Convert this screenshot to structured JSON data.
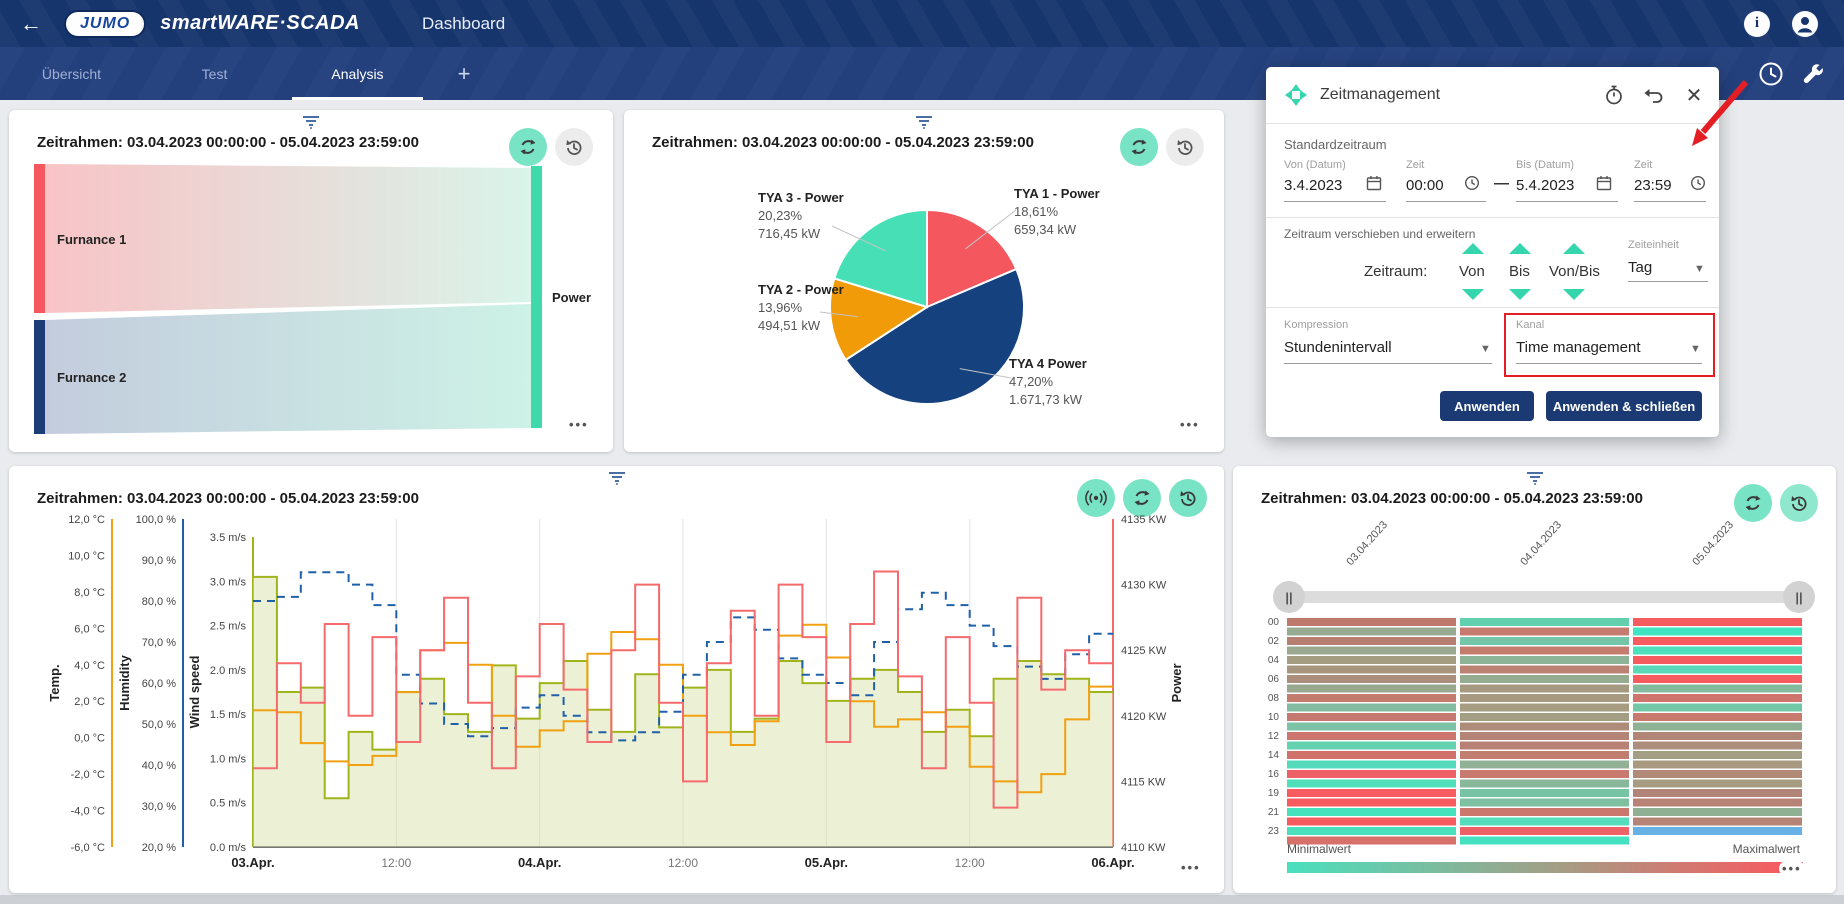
{
  "header": {
    "logo": "JUMO",
    "brand": "smartWARE·SCADA",
    "page": "Dashboard"
  },
  "tabs": {
    "items": [
      {
        "label": "Übersicht",
        "active": false
      },
      {
        "label": "Test",
        "active": false
      },
      {
        "label": "Analysis",
        "active": true
      }
    ],
    "add": "+"
  },
  "timeframe_title": "Zeitrahmen: 03.04.2023 00:00:00 - 05.04.2023 23:59:00",
  "more_label": "•••",
  "dialog": {
    "title": "Zeitmanagement",
    "section1": "Standardzeitraum",
    "von_datum_label": "Von (Datum)",
    "von_datum_value": "3.4.2023",
    "zeit1_label": "Zeit",
    "zeit1_value": "00:00",
    "dash": "—",
    "bis_datum_label": "Bis (Datum)",
    "bis_datum_value": "5.4.2023",
    "zeit2_label": "Zeit",
    "zeit2_value": "23:59",
    "section2": "Zeitraum verschieben und erweitern",
    "zeitraum_label": "Zeitraum:",
    "col_von": "Von",
    "col_bis": "Bis",
    "col_vonbis": "Von/Bis",
    "zeiteinheit_label": "Zeiteinheit",
    "zeiteinheit_value": "Tag",
    "kompression_label": "Kompression",
    "kompression_value": "Stundenintervall",
    "kanal_label": "Kanal",
    "kanal_value": "Time management",
    "apply": "Anwenden",
    "apply_close": "Anwenden & schließen"
  },
  "colors": {
    "accent_mint": "#79e3c5",
    "navy": "#1b3a74",
    "annotation_red": "#e41e25"
  },
  "chart_data": [
    {
      "type": "sankey",
      "title": "Zeitrahmen: 03.04.2023 00:00:00 - 05.04.2023 23:59:00",
      "nodes": [
        {
          "name": "Furnance 1",
          "color": "#f5575f"
        },
        {
          "name": "Furnance 2",
          "color": "#1d3d77"
        },
        {
          "name": "Power",
          "color": "#3fd9ac"
        }
      ],
      "links": [
        {
          "from": "Furnance 1",
          "to": "Power"
        },
        {
          "from": "Furnance 2",
          "to": "Power"
        }
      ]
    },
    {
      "type": "pie",
      "title": "Zeitrahmen: 03.04.2023 00:00:00 - 05.04.2023 23:59:00",
      "slices": [
        {
          "name": "TYA 1 - Power",
          "pct": 18.61,
          "pct_label": "18,61%",
          "value_label": "659,34 kW",
          "color": "#f5575f"
        },
        {
          "name": "TYA 4 Power",
          "pct": 47.2,
          "pct_label": "47,20%",
          "value_label": "1.671,73 kW",
          "color": "#15427f"
        },
        {
          "name": "TYA 2 - Power",
          "pct": 13.96,
          "pct_label": "13,96%",
          "value_label": "494,51 kW",
          "color": "#f09b07"
        },
        {
          "name": "TYA 3 - Power",
          "pct": 20.23,
          "pct_label": "20,23%",
          "value_label": "716,45 kW",
          "color": "#47e0b6"
        }
      ]
    },
    {
      "type": "line",
      "title": "Zeitrahmen: 03.04.2023 00:00:00 - 05.04.2023 23:59:00",
      "x_labels": [
        {
          "t": "03.Apr.",
          "bold": true
        },
        {
          "t": "12:00",
          "bold": false
        },
        {
          "t": "04.Apr.",
          "bold": true
        },
        {
          "t": "12:00",
          "bold": false
        },
        {
          "t": "05.Apr.",
          "bold": true
        },
        {
          "t": "12:00",
          "bold": false
        },
        {
          "t": "06.Apr.",
          "bold": true
        }
      ],
      "axes_left": [
        {
          "name": "Temp.",
          "color": "#f0a010",
          "ticks": [
            "12,0 °C",
            "10,0 °C",
            "8,0 °C",
            "6,0 °C",
            "4,0 °C",
            "2,0 °C",
            "0,0 °C",
            "-2,0 °C",
            "-4,0 °C",
            "-6,0 °C"
          ],
          "range": [
            12,
            -6
          ]
        },
        {
          "name": "Humidity",
          "color": "#2060a8",
          "ticks": [
            "100,0 %",
            "90,0 %",
            "80,0 %",
            "70,0 %",
            "60,0 %",
            "50,0 %",
            "40,0 %",
            "30,0 %",
            "20,0 %"
          ],
          "range": [
            100,
            20
          ]
        },
        {
          "name": "Wind speed",
          "color": "#a0b41c",
          "ticks": [
            "3.5 m/s",
            "3.0 m/s",
            "2.5 m/s",
            "2.0 m/s",
            "1.5 m/s",
            "1.0 m/s",
            "0.5 m/s",
            "0.0 m/s"
          ],
          "range": [
            3.5,
            0
          ]
        }
      ],
      "axis_right": {
        "name": "Power",
        "color": "#f56a6d",
        "ticks": [
          "4135 KW",
          "4130 KW",
          "4125 KW",
          "4120 KW",
          "4115 KW",
          "4110 KW"
        ],
        "range": [
          4135,
          4110
        ]
      },
      "series": [
        {
          "name": "Wind speed",
          "color": "#a0b41c",
          "min": 0,
          "max": 3.5,
          "fill": "rgba(213,224,164,0.45)",
          "values": [
            3.05,
            1.75,
            1.8,
            0.55,
            1.3,
            1.1,
            1.75,
            1.9,
            1.5,
            1.3,
            2.05,
            1.45,
            1.85,
            2.1,
            1.55,
            1.3,
            1.95,
            1.35,
            1.8,
            2.0,
            1.3,
            1.45,
            2.1,
            1.85,
            1.65,
            1.9,
            2.0,
            1.75,
            1.3,
            1.55,
            1.25,
            1.9,
            2.1,
            1.95,
            1.9,
            1.75
          ]
        },
        {
          "name": "Temp.",
          "color": "#f0a010",
          "min": -6,
          "max": 12,
          "values": [
            1.5,
            1.4,
            -0.3,
            -1.3,
            -1.5,
            -1.0,
            2.5,
            4.8,
            5.2,
            4.0,
            1.2,
            -0.5,
            0.4,
            0.9,
            4.6,
            5.8,
            5.4,
            4.0,
            1.2,
            0.3,
            -0.4,
            0.9,
            5.6,
            6.2,
            4.4,
            2.0,
            0.6,
            1.0,
            1.4,
            0.6,
            -1.6,
            -2.4,
            -3.0,
            -2.0,
            1.0,
            2.8
          ]
        },
        {
          "name": "Humidity",
          "color": "#2060a8",
          "min": 20,
          "max": 100,
          "dash": "8,6",
          "values": [
            80,
            81,
            87,
            87,
            84,
            79,
            62,
            55,
            50,
            47,
            49,
            54,
            57,
            52,
            48,
            46,
            48,
            53,
            62,
            70,
            76,
            73,
            66,
            62,
            60,
            57,
            70,
            78,
            82,
            79,
            74,
            69,
            64,
            61,
            67,
            72
          ]
        },
        {
          "name": "Power",
          "color": "#f56a6d",
          "min": 4110,
          "max": 4135,
          "values": [
            4116,
            4124,
            4121,
            4127,
            4120,
            4126,
            4118,
            4125,
            4129,
            4121,
            4116,
            4123,
            4127,
            4122,
            4118,
            4125,
            4130,
            4121,
            4115,
            4124,
            4128,
            4120,
            4130,
            4126,
            4118,
            4127,
            4131,
            4123,
            4116,
            4126,
            4121,
            4113,
            4129,
            4122,
            4125,
            4124
          ]
        }
      ]
    },
    {
      "type": "heatmap",
      "title": "Zeitrahmen: 03.04.2023 00:00:00 - 05.04.2023 23:59:00",
      "columns": [
        "03.04.2023",
        "04.04.2023",
        "05.04.2023"
      ],
      "row_labels": [
        "00",
        "02",
        "04",
        "06",
        "08",
        "10",
        "12",
        "14",
        "16",
        "19",
        "21",
        "23"
      ],
      "legend": {
        "min": "Minimalwert",
        "max": "Maximalwert"
      },
      "cells": [
        [
          "#bd7a6c",
          "#62cfae",
          "#f65b60"
        ],
        [
          "#97ab92",
          "#c77b6f",
          "#3fe4c2"
        ],
        [
          "#b67f72",
          "#74c6a8",
          "#f65b60"
        ],
        [
          "#9aa98f",
          "#c47c6f",
          "#4ce0bc"
        ],
        [
          "#a49d82",
          "#8db497",
          "#f65b60"
        ],
        [
          "#a8957e",
          "#bb8274",
          "#5ad9b8"
        ],
        [
          "#ab8f7c",
          "#96ac90",
          "#f65b60"
        ],
        [
          "#98a78e",
          "#a59a80",
          "#84ba9e"
        ],
        [
          "#c37b6d",
          "#a89a80",
          "#cf746c"
        ],
        [
          "#83bba0",
          "#a59c82",
          "#72c7a7"
        ],
        [
          "#c57970",
          "#a29e84",
          "#c97a6f"
        ],
        [
          "#7cc2a6",
          "#ad8d79",
          "#8eb295"
        ],
        [
          "#cc766e",
          "#b48577",
          "#b28677"
        ],
        [
          "#64d1b0",
          "#b98175",
          "#ad8d7b"
        ],
        [
          "#d1716c",
          "#c17d70",
          "#a39d83"
        ],
        [
          "#55dabb",
          "#90b195",
          "#a89a80"
        ],
        [
          "#ec6066",
          "#c97a6f",
          "#b08a76"
        ],
        [
          "#4fe0bb",
          "#89b79a",
          "#a59c81"
        ],
        [
          "#f75b60",
          "#77c4a4",
          "#b38578"
        ],
        [
          "#f75b60",
          "#7dc0a2",
          "#b88276"
        ],
        [
          "#46e2be",
          "#cc776d",
          "#90b093"
        ],
        [
          "#f75b60",
          "#55dcba",
          "#b68476"
        ],
        [
          "#4ae0bd",
          "#ec6066",
          "#68b1e6"
        ],
        [
          "#d6706a",
          "#44e2c0",
          null
        ]
      ]
    }
  ]
}
